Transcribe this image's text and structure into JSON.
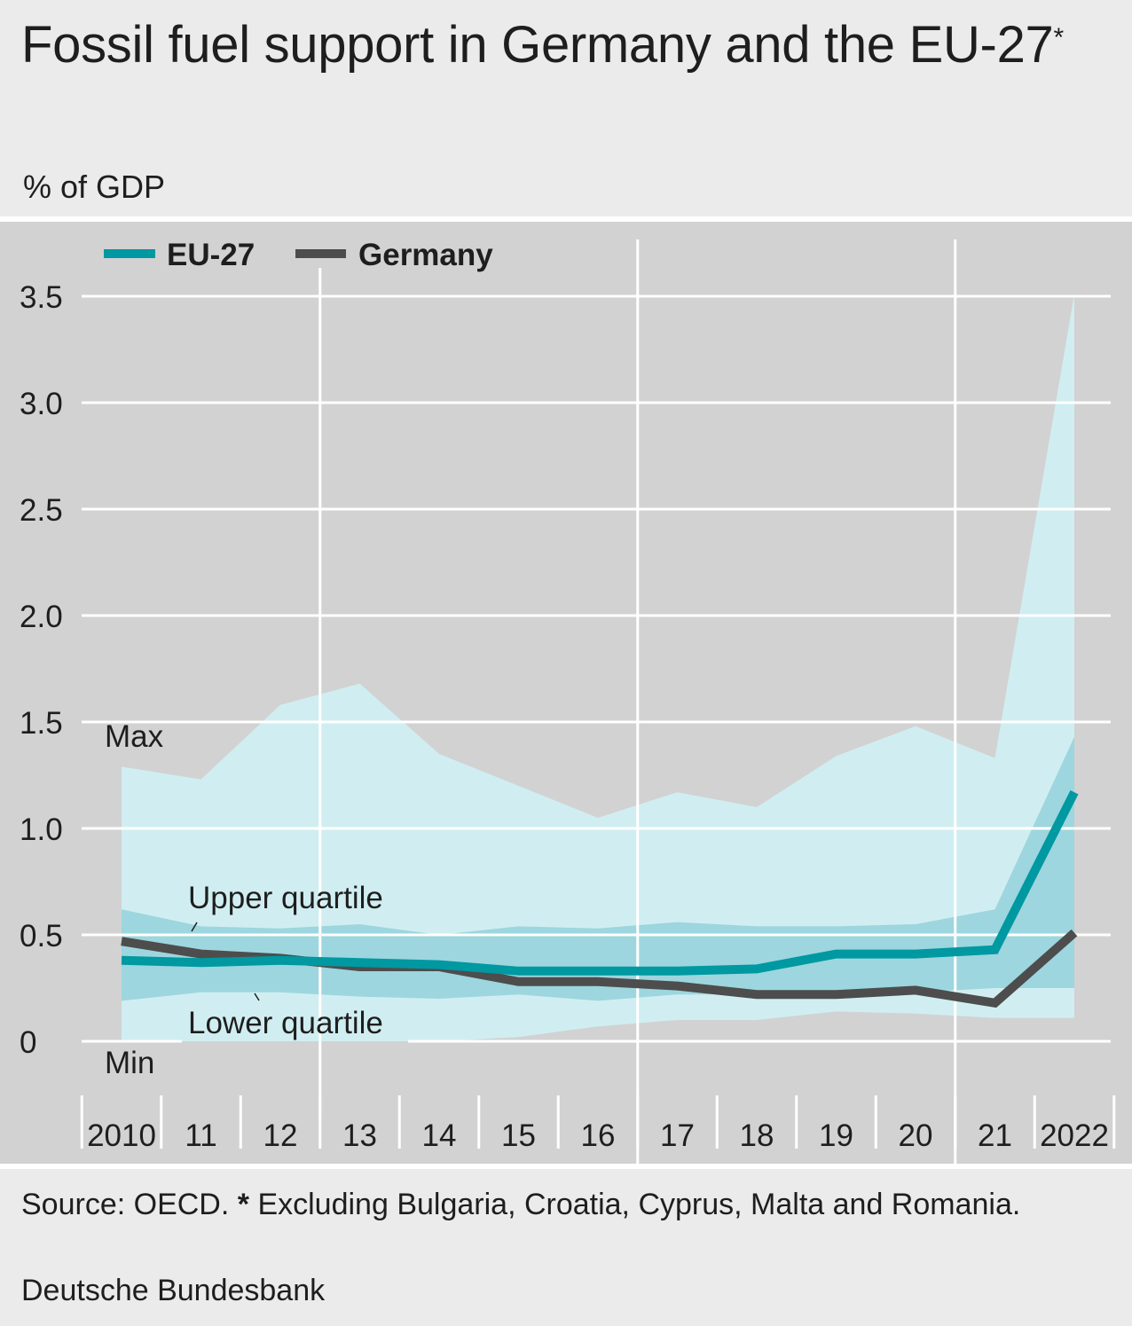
{
  "header": {
    "title": "Fossil fuel support in Germany and the EU-27",
    "title_marker": "*",
    "unit": "% of GDP"
  },
  "footer": {
    "source_prefix": "Source: OECD.",
    "footnote_marker": "*",
    "footnote_text": "Excluding Bulgaria, Croatia, Cyprus, Malta and Romania.",
    "credit": "Deutsche Bundesbank"
  },
  "colors": {
    "eu27": "#0098a1",
    "germany": "#4d4d4d",
    "min_max_band": "#d0eef1",
    "quartile_band": "#9dd6de",
    "plot_background": "#d2d2d2",
    "page_background": "#ebebeb",
    "grid": "#ffffff"
  },
  "chart_data": {
    "type": "line",
    "title": "Fossil fuel support in Germany and the EU-27",
    "ylabel": "% of GDP",
    "xlabel": "",
    "x": [
      2010,
      2011,
      2012,
      2013,
      2014,
      2015,
      2016,
      2017,
      2018,
      2019,
      2020,
      2021,
      2022
    ],
    "x_tick_labels": [
      "2010",
      "11",
      "12",
      "13",
      "14",
      "15",
      "16",
      "17",
      "18",
      "19",
      "20",
      "21",
      "2022"
    ],
    "ylim": [
      0,
      3.5
    ],
    "y_ticks": [
      0,
      0.5,
      1.0,
      1.5,
      2.0,
      2.5,
      3.0,
      3.5
    ],
    "y_tick_labels": [
      "0",
      "0.5",
      "1.0",
      "1.5",
      "2.0",
      "2.5",
      "3.0",
      "3.5"
    ],
    "grid": true,
    "legend": {
      "placement": "top-left",
      "entries": [
        "EU-27",
        "Germany"
      ]
    },
    "series": [
      {
        "name": "EU-27",
        "values": [
          0.38,
          0.37,
          0.38,
          0.37,
          0.36,
          0.33,
          0.33,
          0.33,
          0.34,
          0.41,
          0.41,
          0.43,
          1.17
        ]
      },
      {
        "name": "Germany",
        "values": [
          0.47,
          0.41,
          0.39,
          0.35,
          0.35,
          0.28,
          0.28,
          0.26,
          0.22,
          0.22,
          0.24,
          0.18,
          0.51
        ]
      }
    ],
    "bands": [
      {
        "lower_label": "Min",
        "upper_label": "Max",
        "lower": [
          0.0,
          0.0,
          0.0,
          0.0,
          0.0,
          0.02,
          0.07,
          0.1,
          0.1,
          0.14,
          0.13,
          0.11,
          0.11
        ],
        "upper": [
          1.29,
          1.23,
          1.58,
          1.68,
          1.35,
          1.2,
          1.05,
          1.17,
          1.1,
          1.34,
          1.48,
          1.33,
          3.51
        ]
      },
      {
        "lower_label": "Lower quartile",
        "upper_label": "Upper quartile",
        "lower": [
          0.19,
          0.23,
          0.23,
          0.21,
          0.2,
          0.22,
          0.19,
          0.22,
          0.22,
          0.21,
          0.23,
          0.25,
          0.25
        ],
        "upper": [
          0.62,
          0.54,
          0.53,
          0.55,
          0.5,
          0.54,
          0.53,
          0.56,
          0.54,
          0.54,
          0.55,
          0.62,
          1.43
        ]
      }
    ],
    "annotations": [
      "Max",
      "Upper quartile",
      "Lower quartile",
      "Min"
    ]
  }
}
